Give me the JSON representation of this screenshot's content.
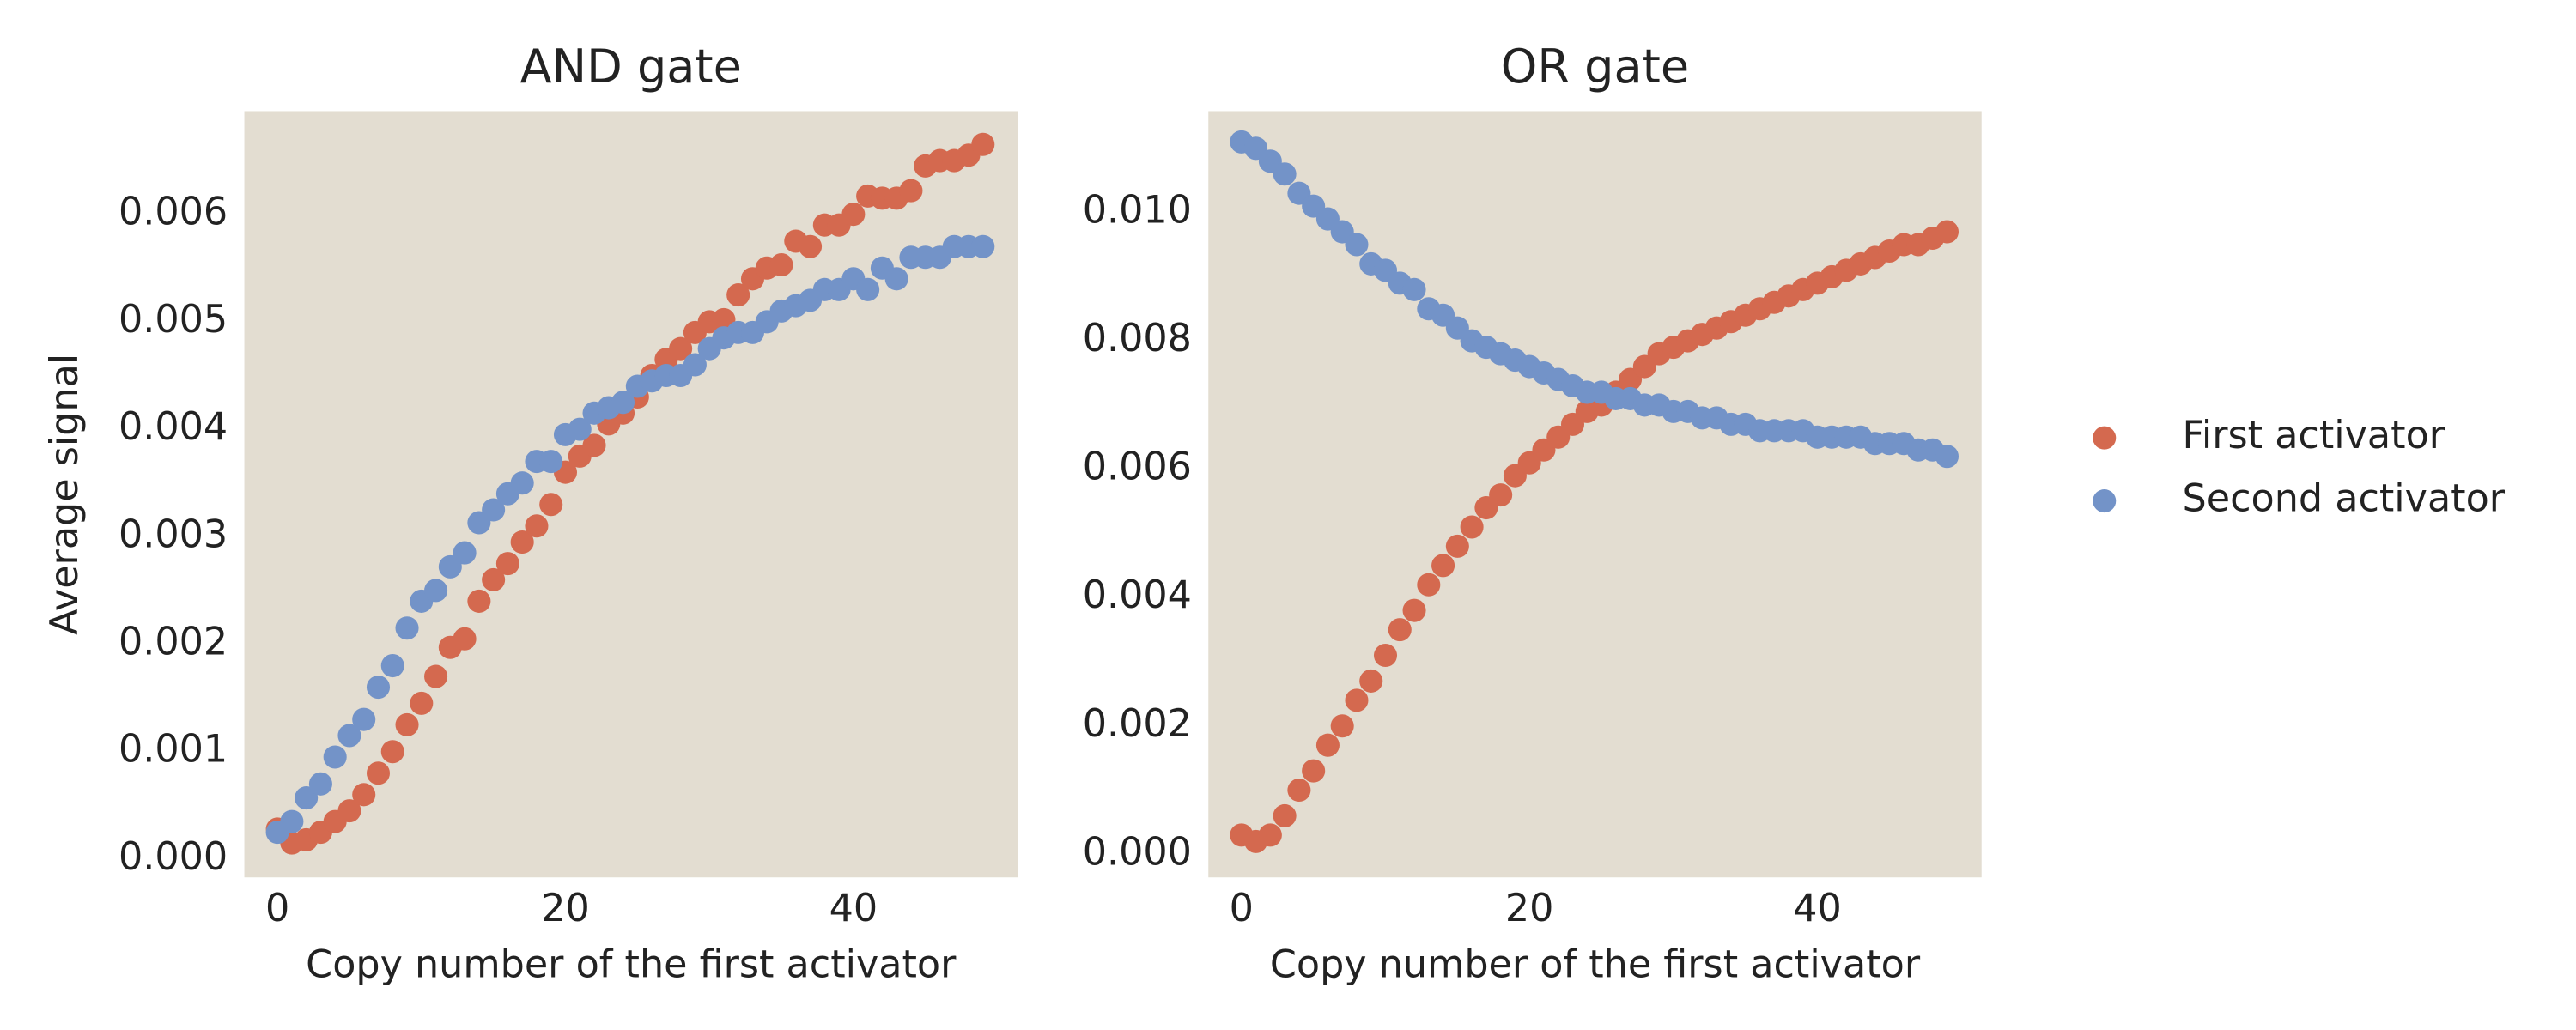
{
  "chart_data": [
    {
      "type": "scatter",
      "title": "AND gate",
      "xlabel": "Copy number of the first activator",
      "ylabel": "Average signal",
      "x": [
        0,
        1,
        2,
        3,
        4,
        5,
        6,
        7,
        8,
        9,
        10,
        11,
        12,
        13,
        14,
        15,
        16,
        17,
        18,
        19,
        20,
        21,
        22,
        23,
        24,
        25,
        26,
        27,
        28,
        29,
        30,
        31,
        32,
        33,
        34,
        35,
        36,
        37,
        38,
        39,
        40,
        41,
        42,
        43,
        44,
        45,
        46,
        47,
        48,
        49
      ],
      "series": [
        {
          "name": "First activator",
          "color": "#d4694f",
          "values": [
            0.00028,
            0.00015,
            0.00018,
            0.00025,
            0.00035,
            0.00045,
            0.0006,
            0.0008,
            0.001,
            0.00125,
            0.00145,
            0.0017,
            0.00197,
            0.00205,
            0.0024,
            0.0026,
            0.00275,
            0.00295,
            0.0031,
            0.0033,
            0.0036,
            0.00375,
            0.00385,
            0.00405,
            0.00415,
            0.0043,
            0.0045,
            0.00465,
            0.00475,
            0.0049,
            0.005,
            0.00502,
            0.00525,
            0.0054,
            0.0055,
            0.00553,
            0.00575,
            0.0057,
            0.0059,
            0.0059,
            0.006,
            0.00617,
            0.00615,
            0.00615,
            0.00622,
            0.00645,
            0.0065,
            0.0065,
            0.00655,
            0.00665
          ]
        },
        {
          "name": "Second activator",
          "color": "#7393c8",
          "values": [
            0.00025,
            0.00035,
            0.00057,
            0.0007,
            0.00095,
            0.00115,
            0.0013,
            0.0016,
            0.0018,
            0.00215,
            0.0024,
            0.0025,
            0.00272,
            0.00285,
            0.00313,
            0.00325,
            0.0034,
            0.0035,
            0.0037,
            0.0037,
            0.00395,
            0.004,
            0.00415,
            0.0042,
            0.00425,
            0.0044,
            0.00445,
            0.0045,
            0.0045,
            0.0046,
            0.00475,
            0.00485,
            0.0049,
            0.0049,
            0.005,
            0.0051,
            0.00515,
            0.0052,
            0.0053,
            0.0053,
            0.0054,
            0.0053,
            0.0055,
            0.0054,
            0.0056,
            0.0056,
            0.0056,
            0.0057,
            0.0057,
            0.0057
          ]
        }
      ],
      "xlim": [
        -2.3,
        51.4
      ],
      "xticks": [
        0,
        20,
        40
      ],
      "ylim": [
        -0.00017,
        0.00696
      ],
      "yticks": [
        {
          "value": 0,
          "label": "0.000"
        },
        {
          "value": 0.001,
          "label": "0.001"
        },
        {
          "value": 0.002,
          "label": "0.002"
        },
        {
          "value": 0.003,
          "label": "0.003"
        },
        {
          "value": 0.004,
          "label": "0.004"
        },
        {
          "value": 0.005,
          "label": "0.005"
        },
        {
          "value": 0.006,
          "label": "0.006"
        }
      ],
      "plot_background": "#e3ddd1",
      "legend": "right"
    },
    {
      "type": "scatter",
      "title": "OR gate",
      "xlabel": "Copy number of the first activator",
      "x": [
        0,
        1,
        2,
        3,
        4,
        5,
        6,
        7,
        8,
        9,
        10,
        11,
        12,
        13,
        14,
        15,
        16,
        17,
        18,
        19,
        20,
        21,
        22,
        23,
        24,
        25,
        26,
        27,
        28,
        29,
        30,
        31,
        32,
        33,
        34,
        35,
        36,
        37,
        38,
        39,
        40,
        41,
        42,
        43,
        44,
        45,
        46,
        47,
        48,
        49
      ],
      "series": [
        {
          "name": "First activator",
          "color": "#d4694f",
          "values": [
            0.0003,
            0.0002,
            0.0003,
            0.0006,
            0.001,
            0.0013,
            0.0017,
            0.002,
            0.0024,
            0.0027,
            0.0031,
            0.0035,
            0.0038,
            0.0042,
            0.0045,
            0.0048,
            0.0051,
            0.0054,
            0.0056,
            0.0059,
            0.0061,
            0.0063,
            0.0065,
            0.0067,
            0.0069,
            0.007,
            0.0072,
            0.0074,
            0.0076,
            0.0078,
            0.0079,
            0.008,
            0.0081,
            0.0082,
            0.0083,
            0.0084,
            0.0085,
            0.0086,
            0.0087,
            0.0088,
            0.0089,
            0.009,
            0.0091,
            0.0092,
            0.0093,
            0.0094,
            0.0095,
            0.0095,
            0.0096,
            0.0097
          ]
        },
        {
          "name": "Second activator",
          "color": "#7393c8",
          "values": [
            0.0111,
            0.011,
            0.0108,
            0.0106,
            0.0103,
            0.0101,
            0.0099,
            0.0097,
            0.0095,
            0.0092,
            0.0091,
            0.0089,
            0.0088,
            0.0085,
            0.0084,
            0.0082,
            0.008,
            0.0079,
            0.0078,
            0.0077,
            0.0076,
            0.0075,
            0.0074,
            0.0073,
            0.0072,
            0.0072,
            0.0071,
            0.0071,
            0.007,
            0.007,
            0.0069,
            0.0069,
            0.0068,
            0.0068,
            0.0067,
            0.0067,
            0.0066,
            0.0066,
            0.0066,
            0.0066,
            0.0065,
            0.0065,
            0.0065,
            0.0065,
            0.0064,
            0.0064,
            0.0064,
            0.0063,
            0.0063,
            0.0062
          ]
        }
      ],
      "xlim": [
        -2.3,
        51.4
      ],
      "xticks": [
        0,
        20,
        40
      ],
      "ylim": [
        -0.00036,
        0.01158
      ],
      "yticks": [
        {
          "value": 0,
          "label": "0.000"
        },
        {
          "value": 0.002,
          "label": "0.002"
        },
        {
          "value": 0.004,
          "label": "0.004"
        },
        {
          "value": 0.006,
          "label": "0.006"
        },
        {
          "value": 0.008,
          "label": "0.008"
        },
        {
          "value": 0.01,
          "label": "0.010"
        }
      ],
      "plot_background": "#e3ddd1"
    }
  ]
}
